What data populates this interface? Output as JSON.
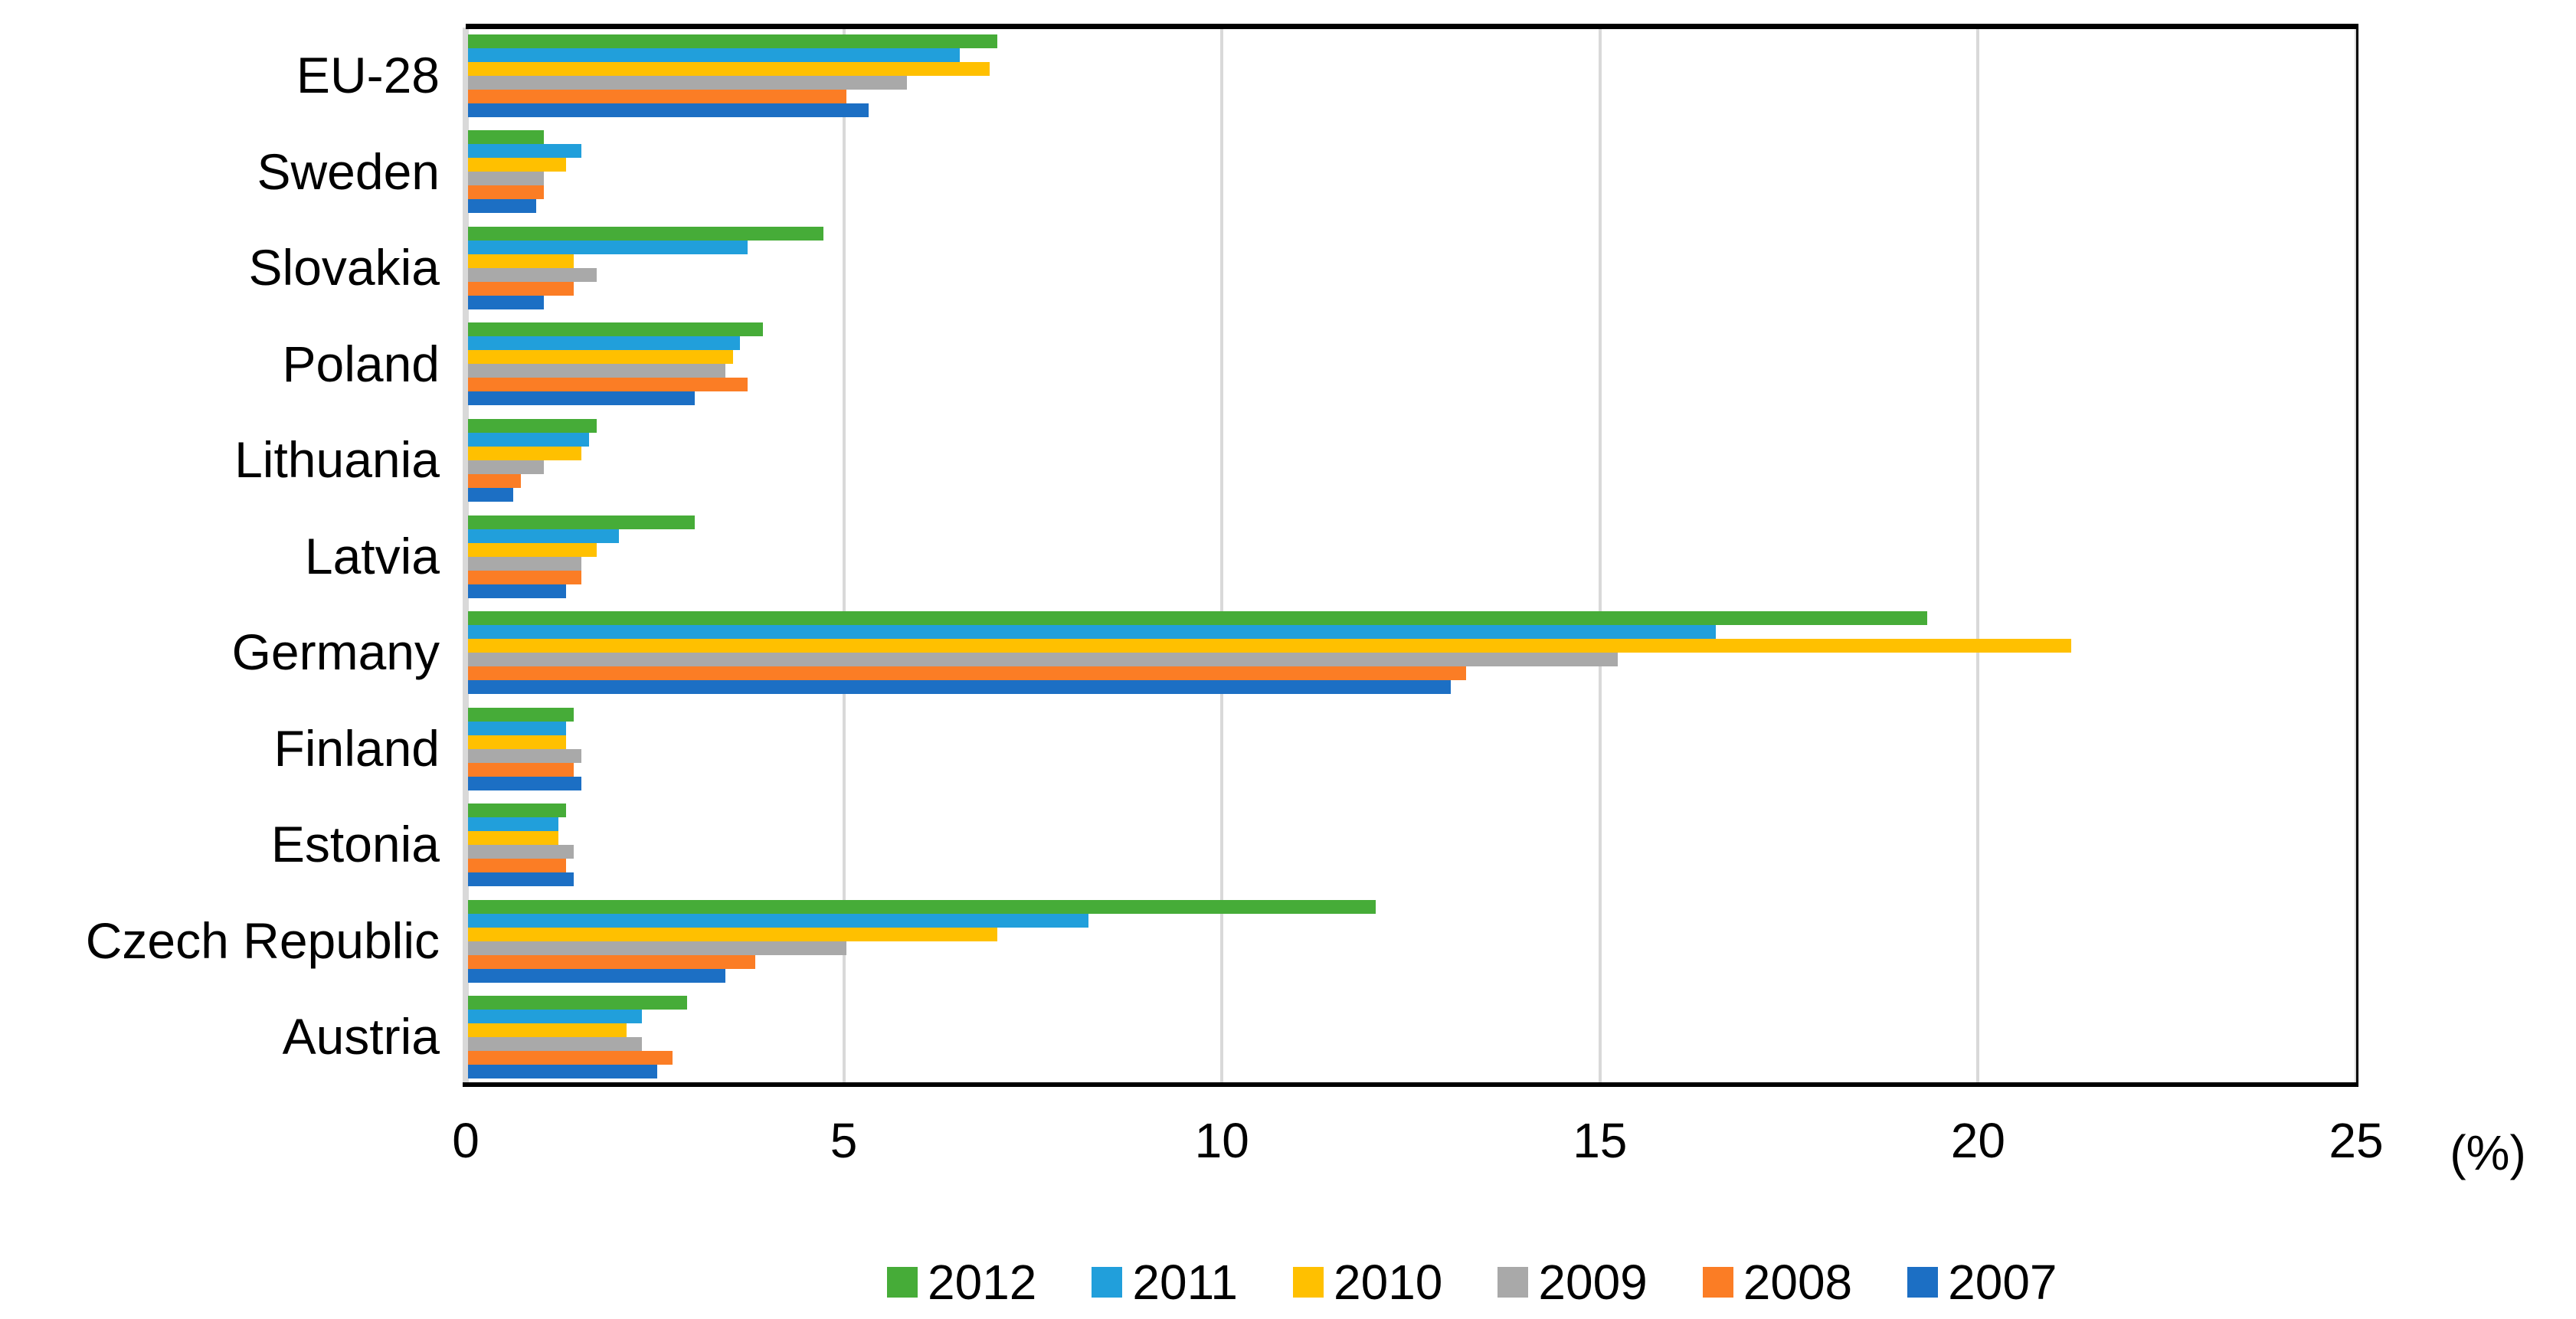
{
  "chart_data": {
    "type": "bar",
    "orientation": "horizontal",
    "title": "",
    "xlabel": "(%)",
    "ylabel": "",
    "xlim": [
      0,
      25
    ],
    "xticks": [
      0,
      5,
      10,
      15,
      20,
      25
    ],
    "grid": "vertical",
    "legend_position": "bottom",
    "gridline_color": "#D9D9D9",
    "categories": [
      "EU-28",
      "Sweden",
      "Slovakia",
      "Poland",
      "Lithuania",
      "Latvia",
      "Germany",
      "Finland",
      "Estonia",
      "Czech Republic",
      "Austria"
    ],
    "series": [
      {
        "name": "2012",
        "color": "#46AC38",
        "values": [
          7.0,
          1.0,
          4.7,
          3.9,
          1.7,
          3.0,
          19.3,
          1.4,
          1.3,
          12.0,
          2.9
        ]
      },
      {
        "name": "2011",
        "color": "#219FDB",
        "values": [
          6.5,
          1.5,
          3.7,
          3.6,
          1.6,
          2.0,
          16.5,
          1.3,
          1.2,
          8.2,
          2.3
        ]
      },
      {
        "name": "2010",
        "color": "#FFC000",
        "values": [
          6.9,
          1.3,
          1.4,
          3.5,
          1.5,
          1.7,
          21.2,
          1.3,
          1.2,
          7.0,
          2.1
        ]
      },
      {
        "name": "2009",
        "color": "#A9A9A9",
        "values": [
          5.8,
          1.0,
          1.7,
          3.4,
          1.0,
          1.5,
          15.2,
          1.5,
          1.4,
          5.0,
          2.3
        ]
      },
      {
        "name": "2008",
        "color": "#FB7D25",
        "values": [
          5.0,
          1.0,
          1.4,
          3.7,
          0.7,
          1.5,
          13.2,
          1.4,
          1.3,
          3.8,
          2.7
        ]
      },
      {
        "name": "2007",
        "color": "#1C6FC4",
        "values": [
          5.3,
          0.9,
          1.0,
          3.0,
          0.6,
          1.3,
          13.0,
          1.5,
          1.4,
          3.4,
          2.5
        ]
      }
    ]
  }
}
